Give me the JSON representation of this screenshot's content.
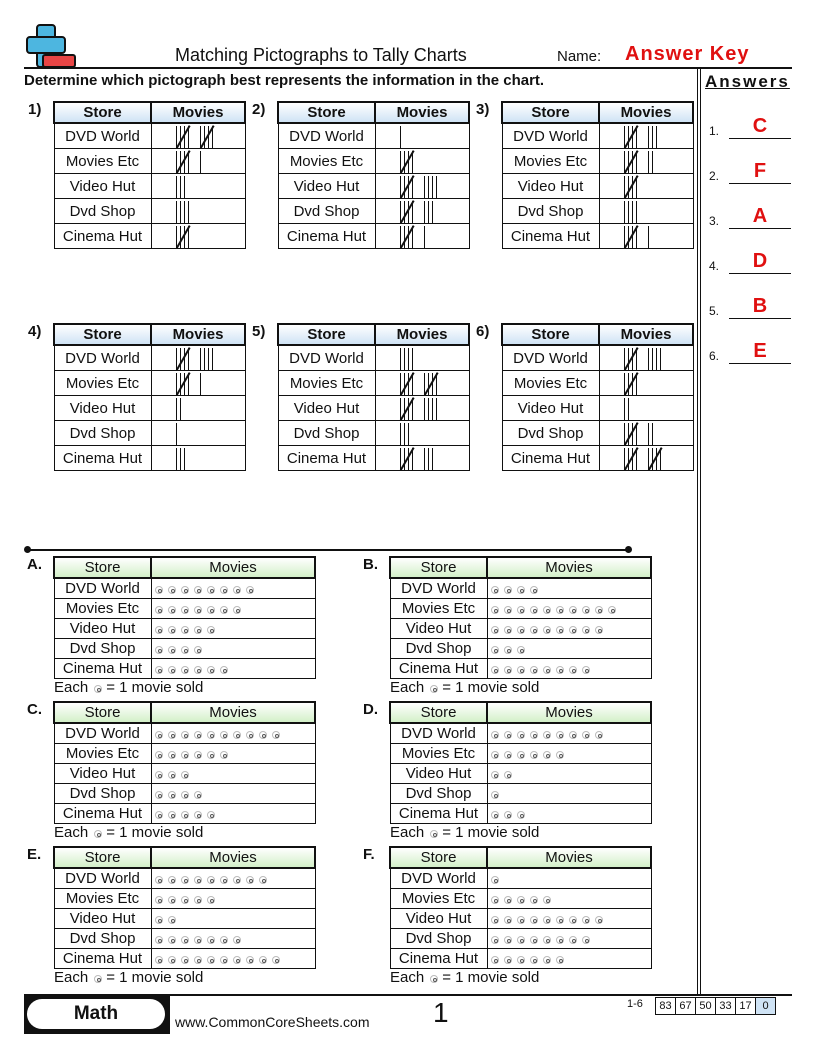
{
  "header": {
    "title": "Matching Pictographs to Tally Charts",
    "name_label": "Name:",
    "name_value": "Answer Key",
    "instructions": "Determine which pictograph best represents the information in the chart."
  },
  "answers_panel": {
    "title": "Answers",
    "items": [
      {
        "n": "1.",
        "v": "C"
      },
      {
        "n": "2.",
        "v": "F"
      },
      {
        "n": "3.",
        "v": "A"
      },
      {
        "n": "4.",
        "v": "D"
      },
      {
        "n": "5.",
        "v": "B"
      },
      {
        "n": "6.",
        "v": "E"
      }
    ]
  },
  "columns": {
    "store": "Store",
    "movies": "Movies"
  },
  "stores": [
    "DVD World",
    "Movies Etc",
    "Video Hut",
    "Dvd Shop",
    "Cinema Hut"
  ],
  "tally_charts": [
    {
      "label": "1)",
      "counts": [
        10,
        6,
        3,
        4,
        5
      ]
    },
    {
      "label": "2)",
      "counts": [
        1,
        5,
        9,
        8,
        6
      ]
    },
    {
      "label": "3)",
      "counts": [
        8,
        7,
        5,
        4,
        6
      ]
    },
    {
      "label": "4)",
      "counts": [
        9,
        6,
        2,
        1,
        3
      ]
    },
    {
      "label": "5)",
      "counts": [
        4,
        10,
        9,
        3,
        8
      ]
    },
    {
      "label": "6)",
      "counts": [
        9,
        5,
        2,
        7,
        10
      ]
    }
  ],
  "pictographs": [
    {
      "label": "A.",
      "counts": [
        8,
        7,
        5,
        4,
        6
      ]
    },
    {
      "label": "B.",
      "counts": [
        4,
        10,
        9,
        3,
        8
      ]
    },
    {
      "label": "C.",
      "counts": [
        10,
        6,
        3,
        4,
        5
      ]
    },
    {
      "label": "D.",
      "counts": [
        9,
        6,
        2,
        1,
        3
      ]
    },
    {
      "label": "E.",
      "counts": [
        9,
        5,
        2,
        7,
        10
      ]
    },
    {
      "label": "F.",
      "counts": [
        1,
        5,
        9,
        8,
        6
      ]
    }
  ],
  "key": {
    "each": "Each",
    "equals": "= 1 movie sold",
    "icon": "dvd-disc-icon"
  },
  "footer": {
    "subject": "Math",
    "url": "www.CommonCoreSheets.com",
    "page": "1",
    "range": "1-6",
    "scores": [
      "83",
      "67",
      "50",
      "33",
      "17",
      "0"
    ]
  },
  "colors": {
    "accent": "#e01010",
    "tally_header": "#cfe3f5",
    "pict_header": "#d3f0c8",
    "logo_blue": "#4db6e0",
    "logo_red": "#e84545"
  }
}
